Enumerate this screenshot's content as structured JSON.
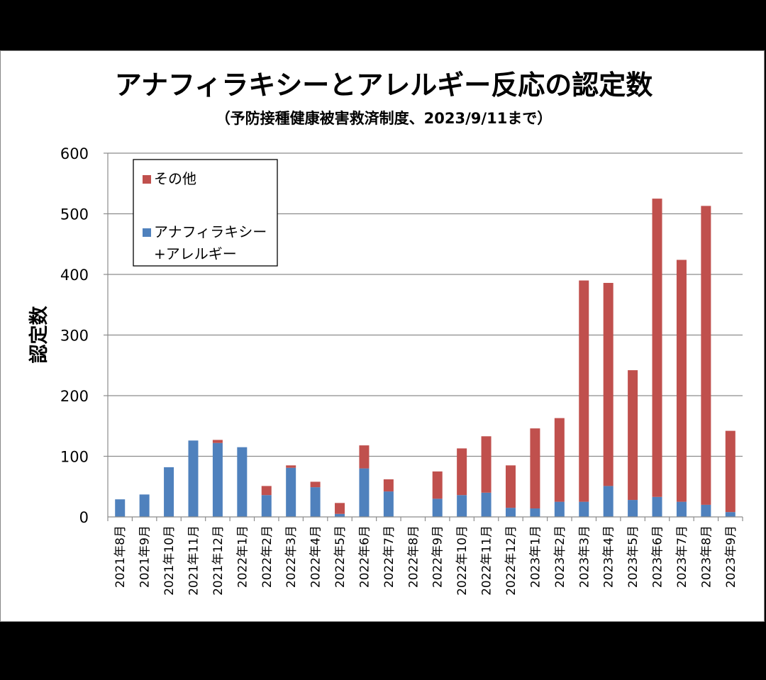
{
  "chart_data": {
    "type": "bar",
    "stacked": true,
    "title": "アナフィラキシーとアレルギー反応の認定数",
    "subtitle": "（予防接種健康被害救済制度、2023/9/11まで）",
    "ylabel": "認定数",
    "xlabel": "",
    "ylim": [
      0,
      600
    ],
    "yticks": [
      0,
      100,
      200,
      300,
      400,
      500,
      600
    ],
    "grid": true,
    "legend_position": "top-left",
    "categories": [
      "2021年8月",
      "2021年9月",
      "2021年10月",
      "2021年11月",
      "2021年12月",
      "2022年1月",
      "2022年2月",
      "2022年3月",
      "2022年4月",
      "2022年5月",
      "2022年6月",
      "2022年7月",
      "2022年8月",
      "2022年9月",
      "2022年10月",
      "2022年11月",
      "2022年12月",
      "2023年1月",
      "2023年2月",
      "2023年3月",
      "2023年4月",
      "2023年5月",
      "2023年6月",
      "2023年7月",
      "2023年8月",
      "2023年9月"
    ],
    "series": [
      {
        "name": "アナフィラキシー+アレルギー",
        "legend_lines": [
          "アナフィラキシー",
          "+アレルギー"
        ],
        "color": "#4f81bd",
        "values": [
          29,
          37,
          82,
          126,
          122,
          115,
          36,
          81,
          49,
          5,
          80,
          42,
          0,
          30,
          36,
          40,
          15,
          14,
          25,
          25,
          51,
          28,
          33,
          25,
          20,
          8
        ]
      },
      {
        "name": "その他",
        "legend_lines": [
          "その他"
        ],
        "color": "#c0504d",
        "values": [
          0,
          0,
          0,
          0,
          5,
          0,
          15,
          4,
          9,
          18,
          38,
          20,
          0,
          45,
          77,
          93,
          70,
          132,
          138,
          365,
          335,
          214,
          492,
          399,
          493,
          134
        ]
      }
    ]
  }
}
